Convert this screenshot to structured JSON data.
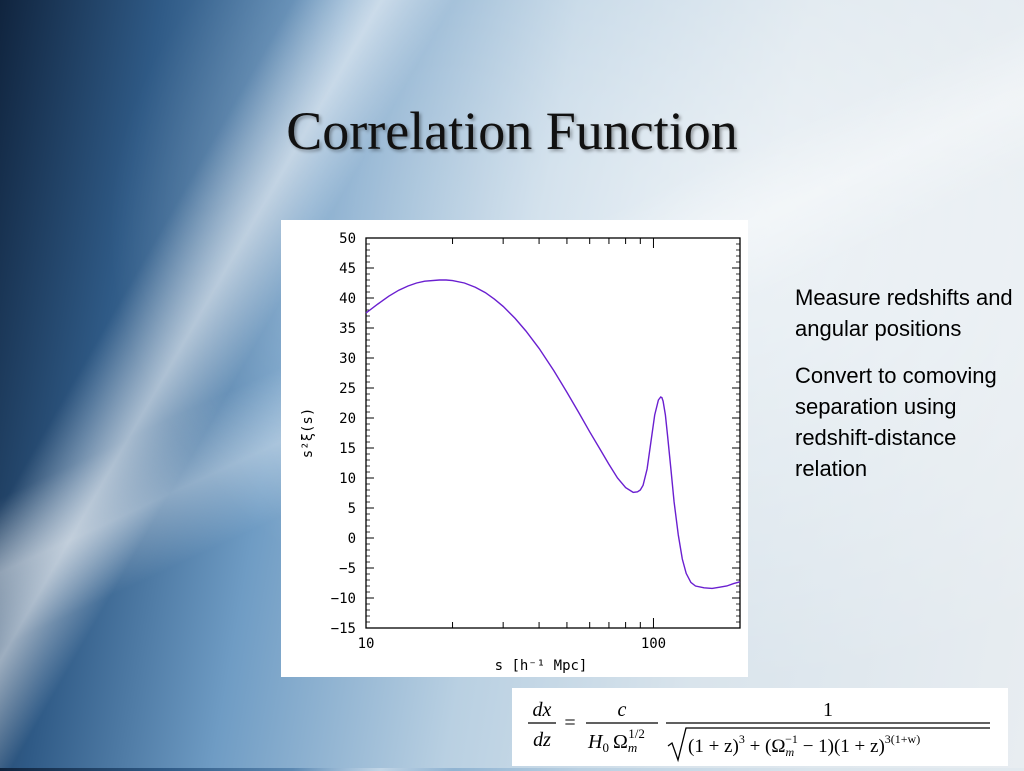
{
  "slide": {
    "title": "Correlation Function",
    "bullets": [
      "Measure redshifts and angular positions",
      "Convert to comoving separation using redshift-distance relation"
    ]
  },
  "formula": {
    "lhs_num": "dx",
    "lhs_den": "dz",
    "equals": "=",
    "c": "c",
    "h0": "H",
    "h0_sub": "0",
    "omega": "Ω",
    "omega_sub": "m",
    "omega_sup": "1/2",
    "one": "1",
    "root_part1": "(1 + z)",
    "root_sup1": "3",
    "root_part2": " + (Ω",
    "root_part2_sub": "m",
    "root_part2_sup": "−1",
    "root_part3": " − 1)(1 + z)",
    "root_sup3": "3(1+w)"
  },
  "chart_data": {
    "type": "line",
    "title": "",
    "xlabel": "s [h⁻¹ Mpc]",
    "ylabel": "s²ξ(s)",
    "x_scale": "log",
    "xlim": [
      10,
      200
    ],
    "ylim": [
      -15,
      50
    ],
    "x_ticks": [
      10,
      100
    ],
    "y_ticks": [
      50,
      45,
      40,
      35,
      30,
      25,
      20,
      15,
      10,
      5,
      0,
      -5,
      -10,
      -15
    ],
    "y_tick_labels": [
      "50",
      "45",
      "40",
      "35",
      "30",
      "25",
      "20",
      "15",
      "10",
      "5",
      "0",
      "−5",
      "−10",
      "−15"
    ],
    "line_color": "#6a1fd0",
    "grid": false,
    "series": [
      {
        "x": [
          10,
          11,
          12,
          13,
          14,
          15,
          16,
          18,
          19,
          20,
          22,
          24,
          26,
          28,
          30,
          33,
          36,
          40,
          45,
          50,
          55,
          60,
          65,
          70,
          75,
          80,
          85,
          88,
          90,
          92,
          95,
          98,
          101,
          104,
          106,
          107,
          108,
          110,
          112,
          115,
          118,
          122,
          126,
          130,
          135,
          140,
          150,
          160,
          170,
          180,
          190,
          200
        ],
        "y": [
          37.5,
          39.0,
          40.3,
          41.3,
          42.0,
          42.5,
          42.8,
          43.0,
          43.0,
          42.9,
          42.5,
          41.8,
          40.9,
          39.8,
          38.6,
          36.6,
          34.5,
          31.6,
          27.9,
          24.3,
          20.9,
          17.7,
          14.9,
          12.3,
          10.0,
          8.4,
          7.6,
          7.7,
          8.0,
          8.8,
          11.5,
          16.0,
          20.5,
          23.0,
          23.5,
          23.4,
          22.8,
          20.5,
          17.0,
          11.5,
          6.0,
          0.5,
          -3.5,
          -5.9,
          -7.4,
          -8.0,
          -8.3,
          -8.4,
          -8.2,
          -8.0,
          -7.6,
          -7.3
        ]
      }
    ]
  }
}
